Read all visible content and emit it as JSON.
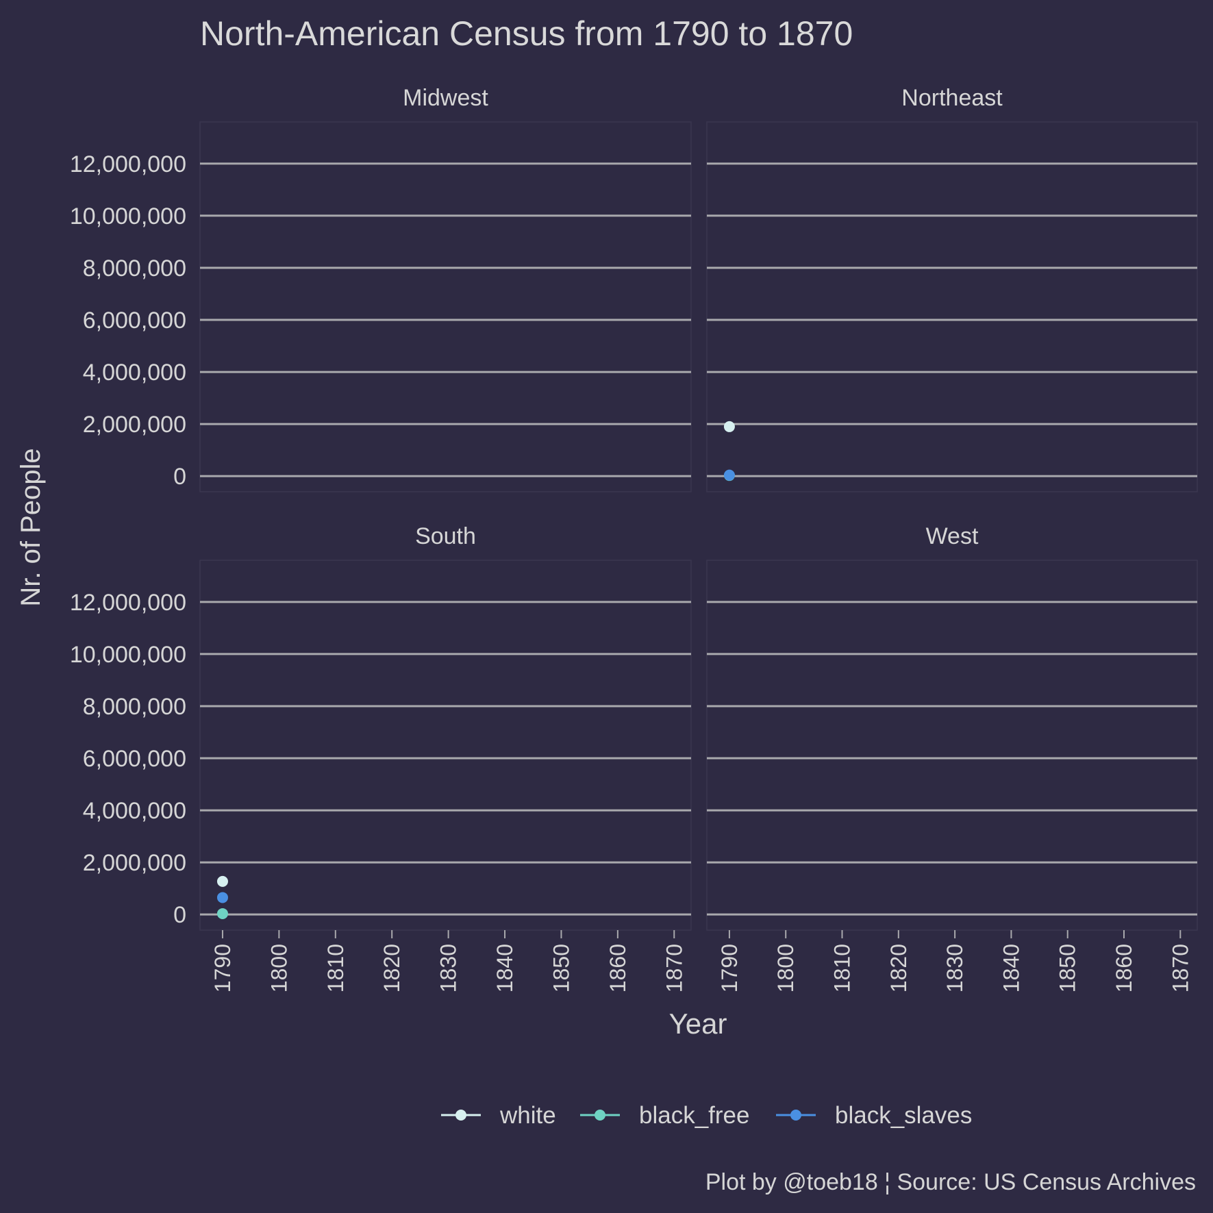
{
  "chart_data": {
    "type": "line",
    "title": "North-American Census from 1790 to 1870",
    "caption": "Plot by @toeb18 ¦ Source: US Census Archives",
    "xlabel": "Year",
    "ylabel": "Nr. of People",
    "x_ticks": [
      1790,
      1800,
      1810,
      1820,
      1830,
      1840,
      1850,
      1860,
      1870
    ],
    "y_ticks": [
      0,
      2000000,
      4000000,
      6000000,
      8000000,
      10000000,
      12000000
    ],
    "y_tick_labels": [
      "0",
      "2,000,000",
      "4,000,000",
      "6,000,000",
      "8,000,000",
      "10,000,000",
      "12,000,000"
    ],
    "xlim": [
      1786,
      1873
    ],
    "ylim": [
      -600000,
      13600000
    ],
    "grid": "horizontal major lines",
    "legend_position": "bottom",
    "series": [
      {
        "name": "white",
        "color": "#d7f0f0"
      },
      {
        "name": "black_free",
        "color": "#6fd3c3"
      },
      {
        "name": "black_slaves",
        "color": "#4a90e2"
      }
    ],
    "panels": [
      {
        "name": "Midwest",
        "points": []
      },
      {
        "name": "Northeast",
        "points": [
          {
            "series": "white",
            "x": 1790,
            "y": 1900000
          },
          {
            "series": "black_free",
            "x": 1790,
            "y": 27000
          },
          {
            "series": "black_slaves",
            "x": 1790,
            "y": 40000
          }
        ]
      },
      {
        "name": "South",
        "points": [
          {
            "series": "white",
            "x": 1790,
            "y": 1270000
          },
          {
            "series": "black_free",
            "x": 1790,
            "y": 32000
          },
          {
            "series": "black_slaves",
            "x": 1790,
            "y": 650000
          }
        ]
      },
      {
        "name": "West",
        "points": []
      }
    ]
  }
}
